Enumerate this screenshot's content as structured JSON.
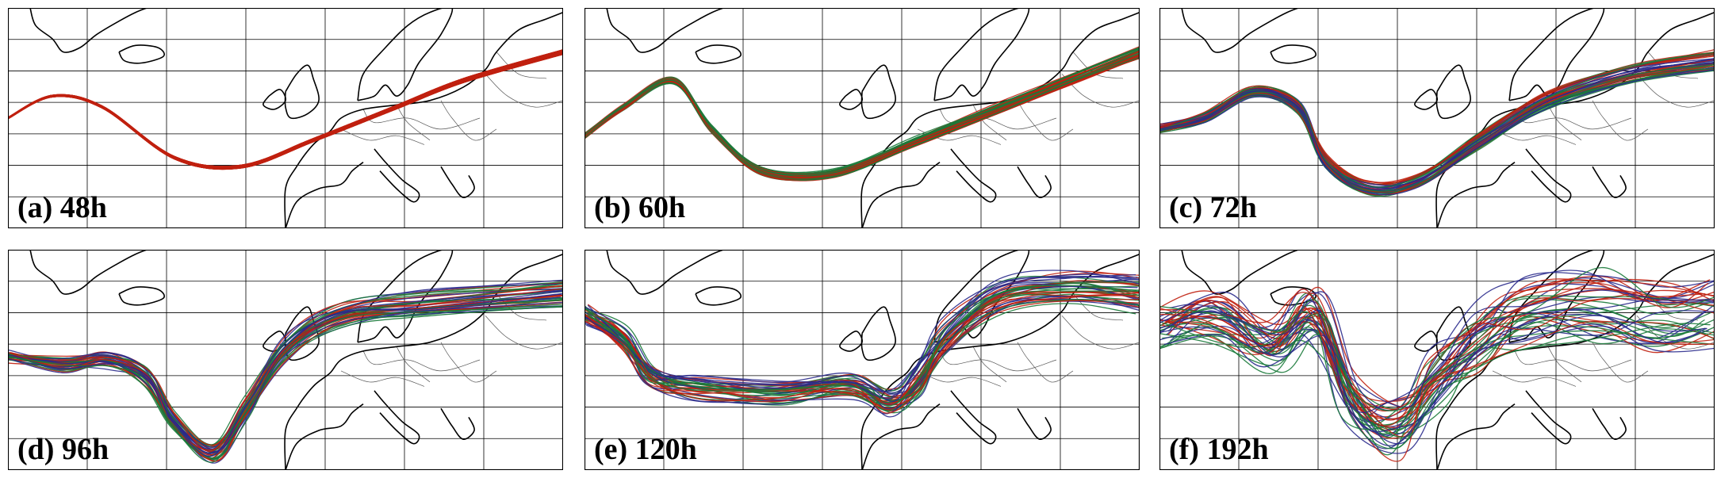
{
  "figure": {
    "panels": [
      {
        "id": "a",
        "label": "(a) 48h",
        "spread": 0.15,
        "wobble": 0,
        "colors": [
          "red"
        ]
      },
      {
        "id": "b",
        "label": "(b) 60h",
        "spread": 0.35,
        "wobble": 0.1,
        "colors": [
          "red",
          "green"
        ]
      },
      {
        "id": "c",
        "label": "(c) 72h",
        "spread": 0.55,
        "wobble": 0.2,
        "colors": [
          "red",
          "green",
          "blue"
        ]
      },
      {
        "id": "d",
        "label": "(d) 96h",
        "spread": 0.8,
        "wobble": 0.35,
        "colors": [
          "red",
          "green",
          "blue"
        ]
      },
      {
        "id": "e",
        "label": "(e) 120h",
        "spread": 1.0,
        "wobble": 0.55,
        "colors": [
          "red",
          "green",
          "blue"
        ]
      },
      {
        "id": "f",
        "label": "(f) 192h",
        "spread": 1.8,
        "wobble": 1.4,
        "colors": [
          "red",
          "green",
          "blue"
        ]
      }
    ],
    "colors": {
      "red": "#c0200f",
      "green": "#1a7a3a",
      "blue": "#2a2a8c",
      "coast": "#000000",
      "grid": "#000000",
      "border": "#555555"
    }
  }
}
